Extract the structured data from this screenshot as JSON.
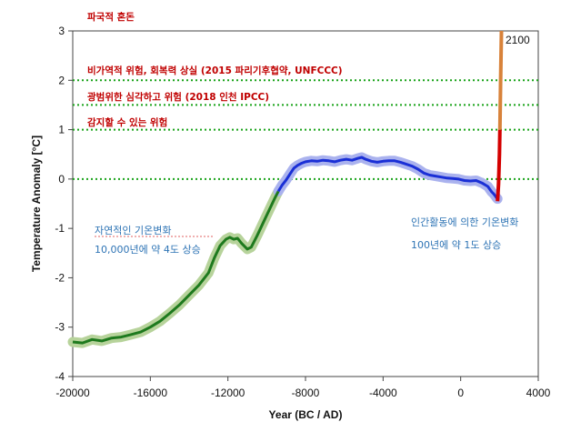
{
  "chart_data": {
    "type": "line",
    "xlabel": "Year (BC / AD)",
    "ylabel": "Temperature Anomaly [°C]",
    "xlim": [
      -20000,
      4000
    ],
    "ylim": [
      -4,
      3
    ],
    "xticks": [
      "-20000",
      "-16000",
      "-12000",
      "-8000",
      "-4000",
      "0",
      "4000"
    ],
    "yticks": [
      "3",
      "2",
      "1",
      "0",
      "-1",
      "-2",
      "-3",
      "-4"
    ],
    "thresholds": [
      2.0,
      1.5,
      1.0,
      0.0
    ],
    "series": [
      {
        "color": "#1e7a1e",
        "band_color": "#b7d39b",
        "points": [
          [
            -20000,
            -3.3
          ],
          [
            -19500,
            -3.32
          ],
          [
            -19000,
            -3.25
          ],
          [
            -18500,
            -3.28
          ],
          [
            -18000,
            -3.22
          ],
          [
            -17500,
            -3.2
          ],
          [
            -17000,
            -3.15
          ],
          [
            -16500,
            -3.1
          ],
          [
            -16000,
            -3.0
          ],
          [
            -15500,
            -2.88
          ],
          [
            -15000,
            -2.72
          ],
          [
            -14500,
            -2.55
          ],
          [
            -14000,
            -2.35
          ],
          [
            -13500,
            -2.15
          ],
          [
            -13000,
            -1.9
          ],
          [
            -12700,
            -1.6
          ],
          [
            -12400,
            -1.35
          ],
          [
            -12100,
            -1.22
          ],
          [
            -11900,
            -1.18
          ],
          [
            -11700,
            -1.22
          ],
          [
            -11500,
            -1.2
          ],
          [
            -11300,
            -1.3
          ],
          [
            -11000,
            -1.42
          ],
          [
            -10800,
            -1.38
          ],
          [
            -10500,
            -1.15
          ],
          [
            -10200,
            -0.9
          ],
          [
            -9900,
            -0.65
          ],
          [
            -9600,
            -0.4
          ],
          [
            -9400,
            -0.25
          ]
        ]
      },
      {
        "color": "#1a2fd6",
        "band_color": "#aab2ee",
        "points": [
          [
            -9400,
            -0.25
          ],
          [
            -9200,
            -0.12
          ],
          [
            -9000,
            -0.02
          ],
          [
            -8800,
            0.1
          ],
          [
            -8600,
            0.22
          ],
          [
            -8400,
            0.28
          ],
          [
            -8200,
            0.32
          ],
          [
            -8000,
            0.35
          ],
          [
            -7700,
            0.37
          ],
          [
            -7400,
            0.36
          ],
          [
            -7100,
            0.38
          ],
          [
            -6800,
            0.37
          ],
          [
            -6500,
            0.35
          ],
          [
            -6200,
            0.38
          ],
          [
            -5900,
            0.4
          ],
          [
            -5600,
            0.38
          ],
          [
            -5300,
            0.42
          ],
          [
            -5100,
            0.44
          ],
          [
            -4900,
            0.4
          ],
          [
            -4600,
            0.36
          ],
          [
            -4300,
            0.34
          ],
          [
            -4000,
            0.36
          ],
          [
            -3700,
            0.37
          ],
          [
            -3400,
            0.37
          ],
          [
            -3100,
            0.34
          ],
          [
            -2800,
            0.3
          ],
          [
            -2500,
            0.26
          ],
          [
            -2200,
            0.2
          ],
          [
            -1900,
            0.12
          ],
          [
            -1600,
            0.08
          ],
          [
            -1300,
            0.06
          ],
          [
            -1000,
            0.04
          ],
          [
            -700,
            0.02
          ],
          [
            -400,
            0.01
          ],
          [
            -100,
            0.0
          ],
          [
            200,
            -0.03
          ],
          [
            500,
            -0.04
          ],
          [
            800,
            -0.03
          ],
          [
            1100,
            -0.08
          ],
          [
            1400,
            -0.15
          ],
          [
            1600,
            -0.26
          ],
          [
            1700,
            -0.3
          ],
          [
            1800,
            -0.35
          ],
          [
            1850,
            -0.38
          ],
          [
            1900,
            -0.4
          ]
        ]
      },
      {
        "color": "#d40000",
        "band_color": "",
        "points": [
          [
            1900,
            -0.45
          ],
          [
            1950,
            -0.1
          ],
          [
            2000,
            0.5
          ],
          [
            2020,
            1.0
          ]
        ]
      },
      {
        "color": "#d8823a",
        "band_color": "",
        "points": [
          [
            2020,
            1.0
          ],
          [
            2060,
            2.0
          ],
          [
            2100,
            3.0
          ]
        ]
      }
    ],
    "annotations": {
      "top": "파국적 혼돈",
      "line2": "비가역적 위험, 회복력 상실 (2015 파리기후협약, UNFCCC)",
      "line15": "광범위한 심각하고 위험 (2018 인천 IPCC)",
      "line1": "감지할 수 있는 위험",
      "natural_title": "자연적인 기온변화",
      "natural_desc": "10,000년에 약 4도 상승",
      "human_title": "인간활동에 의한 기온변화",
      "human_desc": "100년에 약 1도 상승",
      "year_2100": "2100"
    }
  }
}
